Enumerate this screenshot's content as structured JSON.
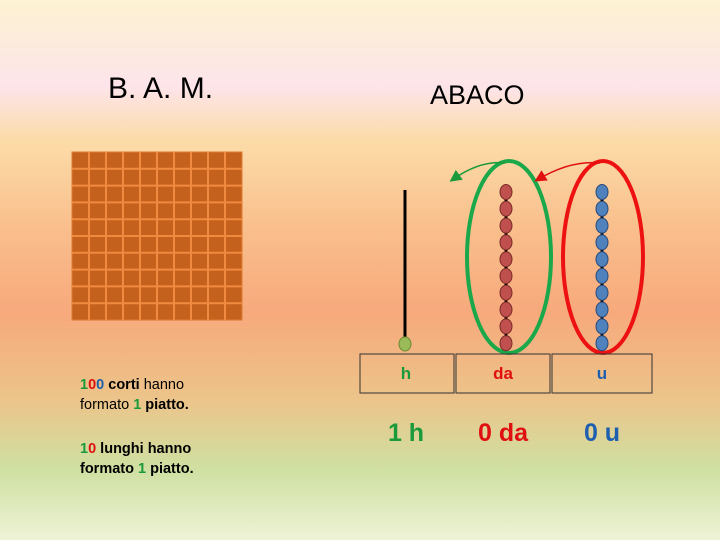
{
  "slide": {
    "titles": {
      "left": "B. A. M.",
      "right": "ABACO"
    },
    "notes": [
      {
        "runs": [
          {
            "text": "1",
            "color": "#1a9a3a",
            "bold": true
          },
          {
            "text": "0",
            "color": "#e01010",
            "bold": true
          },
          {
            "text": "0",
            "color": "#1f5fb0",
            "bold": true
          },
          {
            "text": " corti",
            "color": "#000000",
            "bold": true
          },
          {
            "text": " hanno formato ",
            "color": "#000000",
            "bold": false
          },
          {
            "text": "1",
            "color": "#1a9a3a",
            "bold": true
          },
          {
            "text": " piatto.",
            "color": "#000000",
            "bold": true
          }
        ]
      },
      {
        "runs": [
          {
            "text": "1",
            "color": "#1a9a3a",
            "bold": true
          },
          {
            "text": "0",
            "color": "#e01010",
            "bold": true
          },
          {
            "text": " lunghi hanno formato ",
            "color": "#000000",
            "bold": true
          },
          {
            "text": "1",
            "color": "#1a9a3a",
            "bold": true
          },
          {
            "text": " piatto.",
            "color": "#000000",
            "bold": true
          }
        ]
      }
    ],
    "columns": [
      {
        "label": "h",
        "color": "#1a9a3a",
        "result": "1 h"
      },
      {
        "label": "da",
        "color": "#e01010",
        "result": "0 da"
      },
      {
        "label": "u",
        "color": "#1f5fb0",
        "result": "0 u"
      }
    ]
  }
}
